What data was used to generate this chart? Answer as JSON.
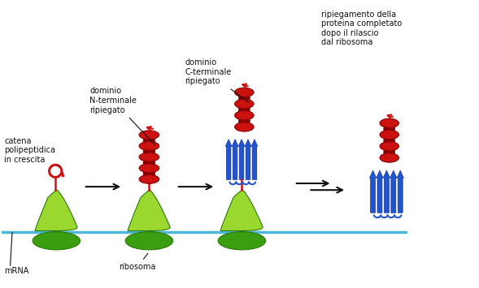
{
  "background_color": "#ffffff",
  "fig_width": 5.89,
  "fig_height": 3.55,
  "dpi": 100,
  "mrna_color": "#4ab8d8",
  "ribosome_large_color": "#3a9e10",
  "ribosome_small_color": "#9ad830",
  "ribosome_outline": "#2a7a08",
  "peptide_color": "#cc1111",
  "beta_sheet_color": "#2255cc",
  "arrow_color": "#111111",
  "text_color": "#111111",
  "labels": {
    "mrna": "mRNA",
    "ribosome": "ribosoma",
    "catena": "catena\npolipeptidica\nin crescita",
    "dominio_n": "dominio\nN-terminale\nripiegato",
    "dominio_c": "dominio\nC-terminale\nripiegato",
    "ripiegamento": "ripiegamento della\nproteina completato\ndopo il rilascio\ndal ribosoma"
  },
  "xlim": [
    0,
    10
  ],
  "ylim": [
    0,
    6
  ]
}
